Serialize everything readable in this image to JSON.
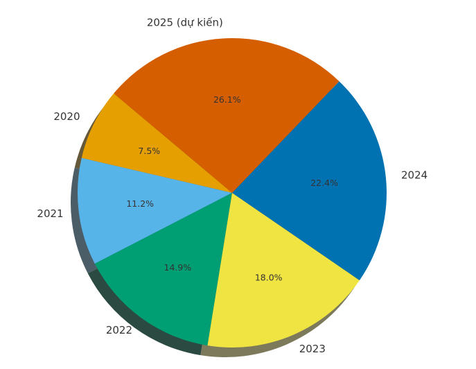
{
  "chart_data": {
    "type": "pie",
    "categories": [
      "2020",
      "2021",
      "2022",
      "2023",
      "2024",
      "2025 (dự kiến)"
    ],
    "values": [
      7.5,
      11.2,
      14.9,
      18.0,
      22.4,
      26.1
    ],
    "value_labels": [
      "7.5%",
      "11.2%",
      "14.9%",
      "18.0%",
      "22.4%",
      "26.1%"
    ],
    "colors": [
      "#E69F00",
      "#56B4E9",
      "#009E73",
      "#F0E442",
      "#0072B2",
      "#D55E00"
    ],
    "shadow": true,
    "legend": "none"
  }
}
